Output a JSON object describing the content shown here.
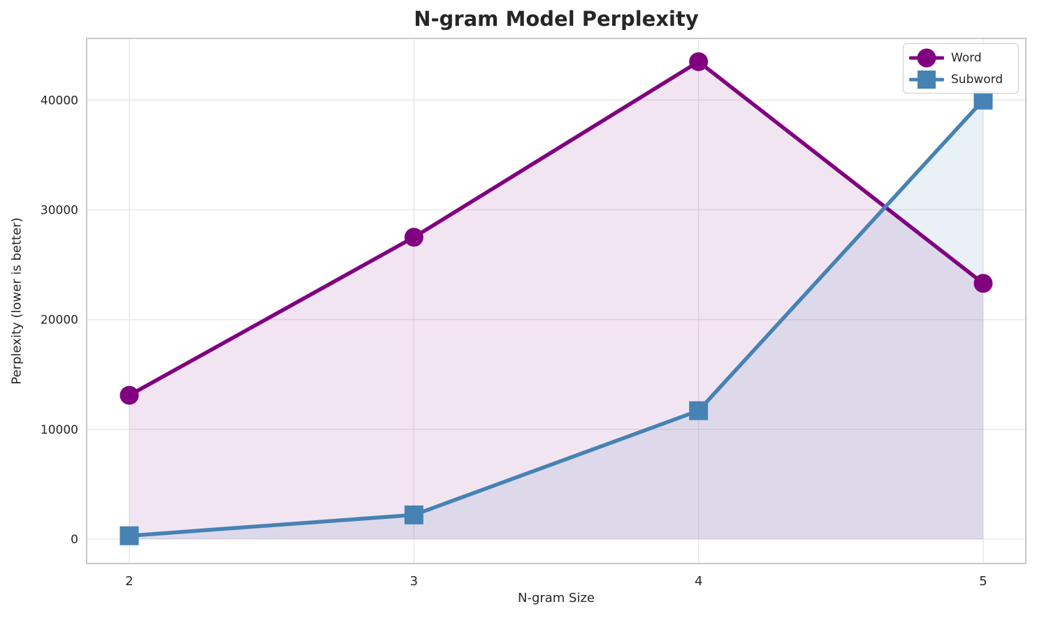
{
  "chart_data": {
    "type": "line",
    "title": "N-gram Model Perplexity",
    "xlabel": "N-gram Size",
    "ylabel": "Perplexity (lower is better)",
    "categories": [
      2,
      3,
      4,
      5
    ],
    "series": [
      {
        "name": "Word",
        "values": [
          13100,
          27500,
          43500,
          23300
        ],
        "color": "#800080",
        "marker": "circle",
        "fill_alpha": 0.1
      },
      {
        "name": "Subword",
        "values": [
          300,
          2200,
          11700,
          40000
        ],
        "color": "#4682B4",
        "marker": "square",
        "fill_alpha": 0.12
      }
    ],
    "yticks": [
      0,
      10000,
      20000,
      30000,
      40000
    ],
    "ytick_labels": [
      "0",
      "10000",
      "20000",
      "30000",
      "40000"
    ],
    "xtick_labels": [
      "2",
      "3",
      "4",
      "5"
    ],
    "ylim": [
      -2230,
      45620
    ],
    "grid": true,
    "area_fill_to": 0,
    "legend_position": "upper right"
  },
  "style_colors": {
    "grid": "#e6e6e6",
    "spine": "#c8c8c8",
    "tick_text": "#262626",
    "background": "#ffffff"
  }
}
